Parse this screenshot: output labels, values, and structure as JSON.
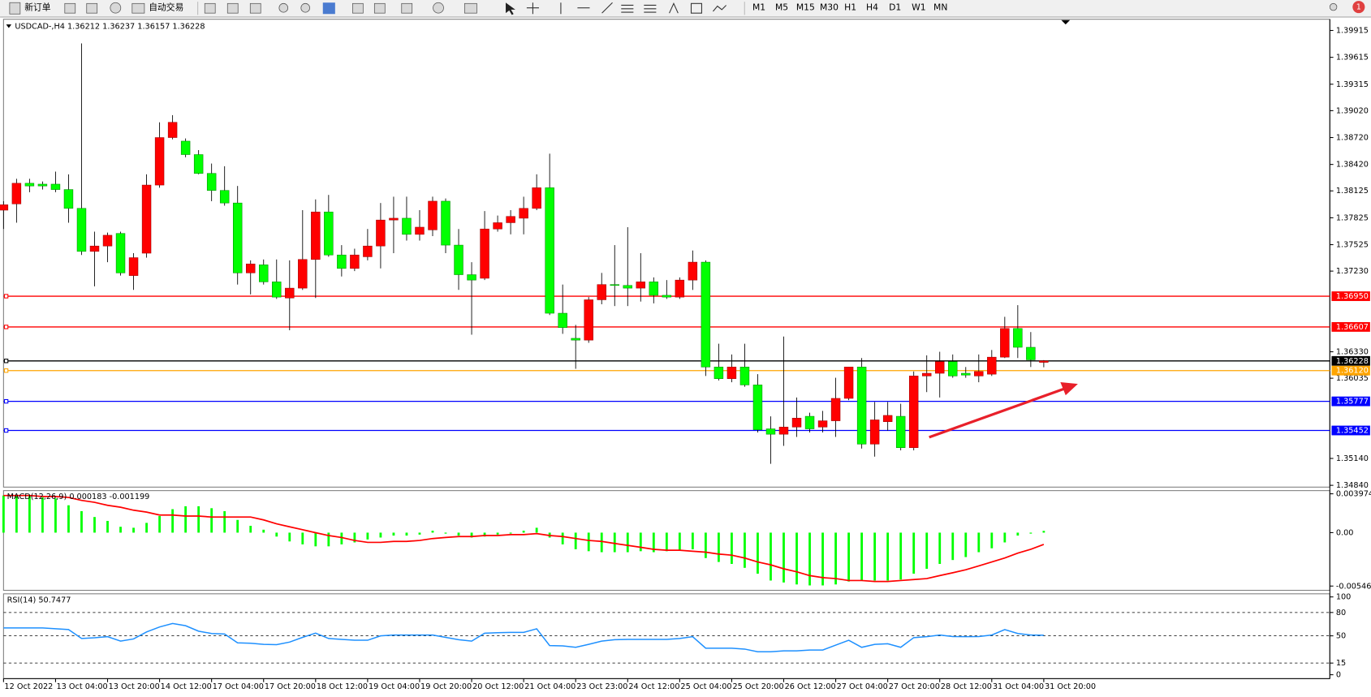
{
  "toolbar": {
    "new_order": "新订单",
    "auto_trading": "自动交易",
    "timeframes": [
      "M1",
      "M5",
      "M15",
      "M30",
      "H1",
      "H4",
      "D1",
      "W1",
      "MN"
    ],
    "notifications": 1
  },
  "chart_data": [
    {
      "type": "candlestick",
      "title": "USDCAD-,H4  1.36212 1.36237 1.36157 1.36228",
      "up_color": "#ff0000",
      "down_color": "#00ff00",
      "xlim": [
        0,
        102
      ],
      "ylim": [
        1.3482,
        1.4004
      ],
      "yticks": [
        1.39915,
        1.39615,
        1.39315,
        {
          "value": 1.3902,
          "label": "1.39020"
        },
        {
          "value": 1.3872,
          "label": "1.38720"
        },
        {
          "value": 1.3842,
          "label": "1.38420"
        },
        1.38125,
        1.37825,
        1.37525,
        {
          "value": 1.3723,
          "label": "1.37230"
        },
        {
          "value": 1.3633,
          "label": "1.36330"
        },
        1.36035,
        {
          "value": 1.3514,
          "label": "1.35140"
        },
        {
          "value": 1.3484,
          "label": "1.34840"
        }
      ],
      "hlines": [
        {
          "value": 1.3695,
          "label": "1.36950",
          "color": "#ff0000"
        },
        {
          "value": 1.36607,
          "label": "1.36607",
          "color": "#ff0000"
        },
        {
          "value": 1.36228,
          "label": "1.36228",
          "color": "#000000"
        },
        {
          "value": 1.3612,
          "label": "1.36120",
          "color": "#ffa500"
        },
        {
          "value": 1.35777,
          "label": "1.35777",
          "color": "#0000ff"
        },
        {
          "value": 1.35452,
          "label": "1.35452",
          "color": "#0000ff"
        }
      ],
      "open": [
        1.3791,
        1.3798,
        1.3821,
        1.382,
        1.382,
        1.3814,
        1.3793,
        1.3745,
        1.3751,
        1.3765,
        1.3718,
        1.3743,
        1.3819,
        1.3872,
        1.3868,
        1.3853,
        1.3832,
        1.3813,
        1.3799,
        1.3721,
        1.373,
        1.3711,
        1.3693,
        1.3704,
        1.3736,
        1.3789,
        1.3741,
        1.3726,
        1.3739,
        1.3751,
        1.378,
        1.3782,
        1.3764,
        1.3769,
        1.3801,
        1.3752,
        1.3719,
        1.3715,
        1.377,
        1.3777,
        1.3782,
        1.3793,
        1.3816,
        1.3676,
        1.3648,
        1.3646,
        1.3691,
        1.3708,
        1.3707,
        1.3704,
        1.3711,
        1.3696,
        1.3694,
        1.3713,
        1.3733,
        1.3616,
        1.3603,
        1.3616,
        1.3596,
        1.3547,
        1.3541,
        1.3549,
        1.3561,
        1.3549,
        1.3556,
        1.3581,
        1.3616,
        1.353,
        1.3555,
        1.3561,
        1.3526,
        1.3606,
        1.3609,
        1.3622,
        1.3609,
        1.3606,
        1.3608,
        1.3627,
        1.3659,
        1.3638,
        1.36212
      ],
      "high": [
        1.3801,
        1.3826,
        1.3826,
        1.3823,
        1.3834,
        1.3831,
        1.3977,
        1.3767,
        1.3766,
        1.3767,
        1.3743,
        1.3831,
        1.3889,
        1.3897,
        1.3871,
        1.3858,
        1.3843,
        1.384,
        1.3818,
        1.3735,
        1.3736,
        1.3736,
        1.3735,
        1.3791,
        1.3803,
        1.3808,
        1.3752,
        1.3748,
        1.377,
        1.3799,
        1.3806,
        1.3806,
        1.3791,
        1.3806,
        1.3804,
        1.377,
        1.3733,
        1.379,
        1.3785,
        1.3791,
        1.3806,
        1.3831,
        1.3854,
        1.3708,
        1.3663,
        1.3694,
        1.3721,
        1.3752,
        1.3772,
        1.3743,
        1.3716,
        1.3713,
        1.3716,
        1.3746,
        1.3735,
        1.3642,
        1.363,
        1.3642,
        1.3608,
        1.3561,
        1.365,
        1.3582,
        1.3565,
        1.3567,
        1.3604,
        1.3616,
        1.3626,
        1.3577,
        1.3577,
        1.3575,
        1.3611,
        1.3629,
        1.3633,
        1.363,
        1.3616,
        1.363,
        1.3635,
        1.3672,
        1.3685,
        1.3655,
        1.36237
      ],
      "low": [
        1.377,
        1.3777,
        1.3811,
        1.3814,
        1.3811,
        1.3777,
        1.3741,
        1.3706,
        1.3733,
        1.3718,
        1.3702,
        1.3738,
        1.3816,
        1.387,
        1.385,
        1.3831,
        1.3801,
        1.3796,
        1.3708,
        1.3697,
        1.3708,
        1.3692,
        1.3657,
        1.3702,
        1.3693,
        1.3739,
        1.3717,
        1.3723,
        1.3735,
        1.3726,
        1.3743,
        1.3757,
        1.3757,
        1.3762,
        1.3743,
        1.3702,
        1.3652,
        1.3713,
        1.3767,
        1.3764,
        1.3764,
        1.3791,
        1.3674,
        1.3653,
        1.3614,
        1.3643,
        1.3686,
        1.3684,
        1.3684,
        1.3689,
        1.3687,
        1.3692,
        1.3692,
        1.3702,
        1.3606,
        1.3601,
        1.3599,
        1.3594,
        1.3543,
        1.3508,
        1.3528,
        1.3538,
        1.3543,
        1.3543,
        1.3538,
        1.3579,
        1.3525,
        1.3516,
        1.3545,
        1.3523,
        1.3523,
        1.3588,
        1.3582,
        1.3604,
        1.3604,
        1.3599,
        1.3606,
        1.3626,
        1.3626,
        1.3616,
        1.36157
      ],
      "close": [
        1.3797,
        1.3821,
        1.3818,
        1.3818,
        1.3814,
        1.3793,
        1.3745,
        1.3751,
        1.3763,
        1.3721,
        1.3738,
        1.3819,
        1.3872,
        1.3889,
        1.3853,
        1.3832,
        1.3813,
        1.3799,
        1.3721,
        1.3731,
        1.3711,
        1.3694,
        1.3704,
        1.3736,
        1.3789,
        1.3741,
        1.3726,
        1.3741,
        1.3751,
        1.378,
        1.3782,
        1.3764,
        1.3772,
        1.3801,
        1.3752,
        1.3719,
        1.3713,
        1.377,
        1.3777,
        1.3784,
        1.3793,
        1.3816,
        1.3676,
        1.366,
        1.3646,
        1.3691,
        1.3708,
        1.3707,
        1.3704,
        1.3711,
        1.3696,
        1.3694,
        1.3713,
        1.3733,
        1.3616,
        1.3603,
        1.3616,
        1.3596,
        1.3546,
        1.3541,
        1.3549,
        1.3559,
        1.3547,
        1.3556,
        1.3581,
        1.3616,
        1.353,
        1.3557,
        1.3562,
        1.3526,
        1.3606,
        1.3609,
        1.3622,
        1.3606,
        1.3607,
        1.3611,
        1.3627,
        1.3659,
        1.3638,
        1.3624,
        1.36228
      ]
    },
    {
      "type": "macd",
      "title": "MACD(12,26,9) 0.000183 -0.001199",
      "xlim": [
        0,
        102
      ],
      "ylim": [
        -0.0059,
        0.0043
      ],
      "yticks": [
        0.003974,
        {
          "value": 0,
          "label": "0.00"
        },
        -0.005465
      ],
      "histogram_color": "#00ff00",
      "signal_color": "#ff0000",
      "histogram": [
        0.0038,
        0.0038,
        0.0038,
        0.0036,
        0.0035,
        0.0028,
        0.0022,
        0.0016,
        0.0012,
        0.0006,
        0.0005,
        0.001,
        0.0017,
        0.0024,
        0.0027,
        0.0027,
        0.0025,
        0.0022,
        0.0013,
        0.0007,
        0.0003,
        -0.0004,
        -0.0009,
        -0.0012,
        -0.0014,
        -0.0014,
        -0.0012,
        -0.001,
        -0.0007,
        -0.0005,
        -0.0003,
        -0.0003,
        -0.0002,
        0.0002,
        -0.0001,
        -0.0003,
        -0.0005,
        -0.0004,
        -0.0002,
        -0.0001,
        0.0002,
        0.0005,
        -0.0005,
        -0.0012,
        -0.0017,
        -0.0019,
        -0.002,
        -0.002,
        -0.002,
        -0.0019,
        -0.002,
        -0.0019,
        -0.0018,
        -0.0017,
        -0.0026,
        -0.003,
        -0.0032,
        -0.0036,
        -0.0042,
        -0.0049,
        -0.0051,
        -0.0053,
        -0.0054,
        -0.0054,
        -0.0053,
        -0.005,
        -0.0049,
        -0.0049,
        -0.0049,
        -0.0048,
        -0.0042,
        -0.0037,
        -0.0032,
        -0.0028,
        -0.0025,
        -0.002,
        -0.0016,
        -0.001,
        -0.0003,
        -0.0001,
        0.000183
      ],
      "signal": [
        0.0038,
        0.0038,
        0.0038,
        0.0037,
        0.0037,
        0.0036,
        0.0033,
        0.0031,
        0.0028,
        0.0026,
        0.0023,
        0.0021,
        0.0018,
        0.0018,
        0.0017,
        0.0017,
        0.0016,
        0.0016,
        0.0016,
        0.0016,
        0.0013,
        0.0009,
        0.0006,
        0.0003,
        0.0,
        -0.0003,
        -0.0005,
        -0.0008,
        -0.001,
        -0.001,
        -0.0009,
        -0.0009,
        -0.0008,
        -0.0006,
        -0.0005,
        -0.0004,
        -0.0004,
        -0.0003,
        -0.0003,
        -0.0002,
        -0.0002,
        -0.0001,
        -0.0003,
        -0.0004,
        -0.0006,
        -0.0008,
        -0.0009,
        -0.0011,
        -0.0013,
        -0.0015,
        -0.0017,
        -0.0018,
        -0.0018,
        -0.0019,
        -0.002,
        -0.0022,
        -0.0023,
        -0.0026,
        -0.003,
        -0.0033,
        -0.0037,
        -0.004,
        -0.0044,
        -0.0046,
        -0.0047,
        -0.0049,
        -0.0049,
        -0.005,
        -0.005,
        -0.0049,
        -0.0048,
        -0.0047,
        -0.0044,
        -0.0041,
        -0.0038,
        -0.0034,
        -0.003,
        -0.0026,
        -0.0021,
        -0.0017,
        -0.001199
      ]
    },
    {
      "type": "line",
      "title": "RSI(14) 50.7477",
      "color": "#1e90ff",
      "xlim": [
        0,
        102
      ],
      "ylim": [
        -5,
        104
      ],
      "yticks": [
        100,
        80,
        50,
        15,
        0
      ],
      "levels": [
        80,
        50,
        15
      ],
      "xticks": [
        {
          "value": 0,
          "label": "12 Oct 2022"
        },
        {
          "value": 4,
          "label": "13 Oct 04:00"
        },
        {
          "value": 8,
          "label": "13 Oct 20:00"
        },
        {
          "value": 12,
          "label": "14 Oct 12:00"
        },
        {
          "value": 16,
          "label": "17 Oct 04:00"
        },
        {
          "value": 20,
          "label": "17 Oct 20:00"
        },
        {
          "value": 24,
          "label": "18 Oct 12:00"
        },
        {
          "value": 28,
          "label": "19 Oct 04:00"
        },
        {
          "value": 32,
          "label": "19 Oct 20:00"
        },
        {
          "value": 36,
          "label": "20 Oct 12:00"
        },
        {
          "value": 40,
          "label": "21 Oct 04:00"
        },
        {
          "value": 44,
          "label": "23 Oct 23:00"
        },
        {
          "value": 48,
          "label": "24 Oct 12:00"
        },
        {
          "value": 52,
          "label": "25 Oct 04:00"
        },
        {
          "value": 56,
          "label": "25 Oct 20:00"
        },
        {
          "value": 60,
          "label": "26 Oct 12:00"
        },
        {
          "value": 64,
          "label": "27 Oct 04:00"
        },
        {
          "value": 68,
          "label": "27 Oct 20:00"
        },
        {
          "value": 72,
          "label": "28 Oct 12:00"
        },
        {
          "value": 76,
          "label": "31 Oct 04:00"
        },
        {
          "value": 80,
          "label": "31 Oct 20:00"
        }
      ],
      "values": [
        60.2,
        60.2,
        60.2,
        60.2,
        59,
        58,
        46.6,
        47.5,
        48.9,
        43.2,
        46,
        55,
        61.4,
        65.9,
        63,
        56,
        53,
        52.3,
        41,
        40.5,
        39,
        38.6,
        42,
        48,
        53.4,
        46.6,
        45.5,
        44.3,
        44.3,
        50,
        51.1,
        51.1,
        51.1,
        51.1,
        48,
        45,
        43.2,
        53.4,
        54,
        54.5,
        54.5,
        59.1,
        37.5,
        37,
        35.2,
        39,
        43.2,
        45,
        45.5,
        45.5,
        45.5,
        45.5,
        46.6,
        48.9,
        34.1,
        34.1,
        34.1,
        33,
        29.5,
        29.5,
        30.7,
        30.7,
        31.8,
        31.8,
        38,
        44.3,
        35.2,
        39,
        39.8,
        35.2,
        47.7,
        48.9,
        51.1,
        49,
        48.9,
        49,
        51.1,
        58,
        53,
        51.1,
        50.7477
      ]
    }
  ]
}
